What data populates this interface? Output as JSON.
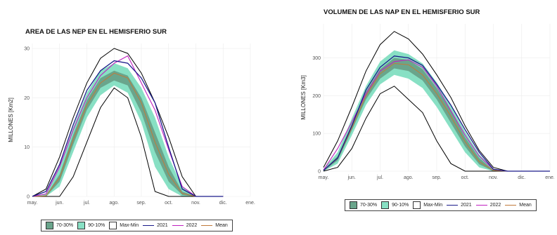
{
  "chart_data": [
    {
      "type": "area",
      "title": "AREA DE LAS NEP EN EL HEMISFERIO SUR",
      "xlabel": "",
      "ylabel": "MILLONES [Km2]",
      "ylim": [
        0,
        31
      ],
      "x_tick_labels": [
        "may.",
        "jun.",
        "jul.",
        "ago.",
        "sep.",
        "oct.",
        "nov.",
        "dic.",
        "ene."
      ],
      "y_ticks": [
        0,
        10,
        20,
        30
      ],
      "grid": true,
      "legend_position": "bottom",
      "month_index": [
        0,
        0.5,
        1,
        1.5,
        2,
        2.5,
        3,
        3.5,
        4,
        4.5,
        5,
        5.5,
        6,
        6.5,
        7
      ],
      "series": [
        {
          "name": "Max-Min",
          "band": "max",
          "values": [
            0,
            1.5,
            8,
            16,
            23,
            28,
            30,
            29,
            25,
            19,
            12,
            4,
            0,
            0,
            0
          ]
        },
        {
          "name": "Max-Min",
          "band": "min",
          "values": [
            0,
            0,
            0,
            4,
            11,
            18,
            22,
            20,
            12,
            1,
            0,
            0,
            0,
            0,
            0
          ]
        },
        {
          "name": "90-10%",
          "band": "upper",
          "values": [
            0,
            0.6,
            6,
            14,
            21,
            25.5,
            27,
            26,
            22,
            16,
            8,
            2,
            0,
            0,
            0
          ]
        },
        {
          "name": "90-10%",
          "band": "lower",
          "values": [
            0,
            0,
            2,
            9,
            16,
            20.5,
            22.5,
            21,
            15,
            6,
            1.5,
            0,
            0,
            0,
            0
          ]
        },
        {
          "name": "70-30%",
          "band": "upper",
          "values": [
            0,
            0.2,
            4.5,
            12.5,
            19.5,
            24,
            25.5,
            24.5,
            20,
            13,
            6,
            1,
            0,
            0,
            0
          ]
        },
        {
          "name": "70-30%",
          "band": "lower",
          "values": [
            0,
            0,
            3,
            10.5,
            17.5,
            22,
            23.5,
            22.5,
            17,
            9,
            3,
            0.3,
            0,
            0,
            0
          ]
        },
        {
          "name": "Mean",
          "values": [
            0,
            0.1,
            3.8,
            11.5,
            18.5,
            23,
            25,
            24,
            19,
            11,
            4.5,
            0.6,
            0,
            0,
            0
          ]
        },
        {
          "name": "2021",
          "values": [
            0,
            1,
            6.5,
            14.5,
            21.5,
            25.5,
            27.5,
            27,
            24,
            19,
            10,
            1.5,
            0,
            0,
            0
          ]
        },
        {
          "name": "2022",
          "values": [
            0,
            0.5,
            6,
            13.5,
            20,
            24.5,
            27,
            28.5,
            23,
            17.5,
            9.5,
            2,
            0,
            0,
            0
          ]
        }
      ]
    },
    {
      "type": "area",
      "title": "VOLUMEN DE LAS NAP EN EL HEMISFERIO SUR",
      "xlabel": "",
      "ylabel": "MILLONES [Km3]",
      "ylim": [
        0,
        390
      ],
      "x_tick_labels": [
        "may.",
        "jun.",
        "jul.",
        "ago.",
        "sep.",
        "oct.",
        "nov.",
        "dic.",
        "ene."
      ],
      "y_ticks": [
        0,
        100,
        200,
        300
      ],
      "grid": true,
      "legend_position": "bottom",
      "month_index": [
        0,
        0.5,
        1,
        1.5,
        2,
        2.5,
        3,
        3.5,
        4,
        4.5,
        5,
        5.5,
        6,
        6.5,
        7,
        7.5,
        8
      ],
      "series": [
        {
          "name": "Max-Min",
          "band": "max",
          "values": [
            10,
            80,
            170,
            265,
            335,
            370,
            350,
            310,
            255,
            195,
            120,
            55,
            10,
            0,
            0,
            0,
            0
          ]
        },
        {
          "name": "Max-Min",
          "band": "min",
          "values": [
            0,
            10,
            60,
            140,
            205,
            225,
            190,
            155,
            80,
            20,
            0,
            0,
            0,
            0,
            0,
            0,
            0
          ]
        },
        {
          "name": "90-10%",
          "band": "upper",
          "values": [
            5,
            50,
            140,
            225,
            290,
            320,
            310,
            285,
            235,
            175,
            105,
            45,
            5,
            0,
            0,
            0,
            0
          ]
        },
        {
          "name": "90-10%",
          "band": "lower",
          "values": [
            0,
            20,
            95,
            175,
            230,
            255,
            245,
            220,
            170,
            110,
            50,
            10,
            0,
            0,
            0,
            0,
            0
          ]
        },
        {
          "name": "70-30%",
          "band": "upper",
          "values": [
            3,
            40,
            125,
            210,
            270,
            300,
            295,
            270,
            220,
            160,
            90,
            35,
            3,
            0,
            0,
            0,
            0
          ]
        },
        {
          "name": "70-30%",
          "band": "lower",
          "values": [
            0,
            28,
            108,
            190,
            245,
            272,
            265,
            240,
            190,
            128,
            65,
            18,
            0,
            0,
            0,
            0,
            0
          ]
        },
        {
          "name": "Mean",
          "values": [
            2,
            34,
            115,
            200,
            258,
            285,
            282,
            255,
            205,
            145,
            78,
            25,
            2,
            0,
            0,
            0,
            0
          ]
        },
        {
          "name": "2021",
          "values": [
            2,
            35,
            120,
            215,
            275,
            305,
            300,
            280,
            230,
            175,
            110,
            50,
            5,
            0,
            0,
            0,
            0
          ]
        },
        {
          "name": "2022",
          "values": [
            3,
            60,
            130,
            205,
            265,
            290,
            295,
            275,
            225,
            160,
            95,
            40,
            5,
            0,
            0,
            0,
            0
          ]
        }
      ]
    }
  ],
  "legend": {
    "items": [
      {
        "label": "70-30%",
        "kind": "box",
        "color": "#6aa58c"
      },
      {
        "label": "90-10%",
        "kind": "box",
        "color": "#88e0c4"
      },
      {
        "label": "Max-Min",
        "kind": "box",
        "color": "#ffffff"
      },
      {
        "label": "2021",
        "kind": "line",
        "color": "#1a1a8a"
      },
      {
        "label": "2022",
        "kind": "line",
        "color": "#c020c0"
      },
      {
        "label": "Mean",
        "kind": "line",
        "color": "#c07a3a"
      }
    ]
  },
  "colors": {
    "band_70_30": "#6aa58c",
    "band_90_10": "#88e0c4",
    "max_min_line": "#000000",
    "line_2021": "#1a1a8a",
    "line_2022": "#c020c0",
    "line_mean": "#c07a3a"
  }
}
